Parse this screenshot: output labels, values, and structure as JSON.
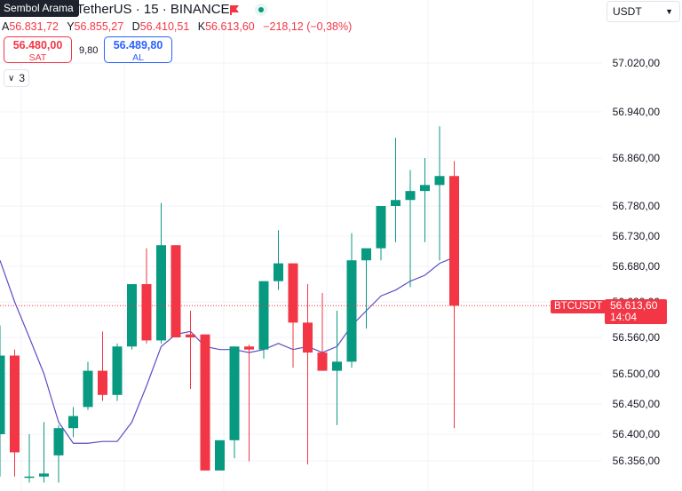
{
  "header": {
    "search_tooltip": "Sembol Arama",
    "symbol_title": "TetherUS · 15 · BINANCE",
    "flag_icon": "flag-icon",
    "status_color": "#089981"
  },
  "ohlc": {
    "open_key": "A",
    "open_value": "56.831,72",
    "high_key": "Y",
    "high_value": "56.855,27",
    "low_key": "D",
    "low_value": "56.410,51",
    "close_key": "K",
    "close_value": "56.613,60",
    "change": "−218,12 (−0,38%)"
  },
  "trade": {
    "sell_price": "56.480,00",
    "sell_label": "SAT",
    "spread": "9,80",
    "buy_price": "56.489,80",
    "buy_label": "AL"
  },
  "indicators_toggle": {
    "count": "3"
  },
  "currency_select": {
    "value": "USDT"
  },
  "price_line": {
    "symbol_tag": "BTCUSDT",
    "last_price": "56.613,60",
    "countdown": "14:04"
  },
  "colors": {
    "up": "#089981",
    "down": "#f23645",
    "ma": "#5b4fc4",
    "grid": "#f0f3fa"
  },
  "chart_data": {
    "type": "candlestick",
    "y_ticks": [
      {
        "label": "57.020,00",
        "value": 57020
      },
      {
        "label": "56.940,00",
        "value": 56940
      },
      {
        "label": "56.860,00",
        "value": 56860
      },
      {
        "label": "56.780,00",
        "value": 56780
      },
      {
        "label": "56.730,00",
        "value": 56730
      },
      {
        "label": "56.680,00",
        "value": 56680
      },
      {
        "label": "56.620,00",
        "value": 56620
      },
      {
        "label": "56.560,00",
        "value": 56560
      },
      {
        "label": "56.500,00",
        "value": 56500
      },
      {
        "label": "56.450,00",
        "value": 56450
      },
      {
        "label": "56.400,00",
        "value": 56400
      },
      {
        "label": "56.356,00",
        "value": 56356
      }
    ],
    "last_price": 56613.6,
    "candles": [
      {
        "o": 56400,
        "h": 56580,
        "l": 56330,
        "c": 56530
      },
      {
        "o": 56530,
        "h": 56540,
        "l": 56330,
        "c": 56370
      },
      {
        "o": 56330,
        "h": 56400,
        "l": 56320,
        "c": 56330
      },
      {
        "o": 56330,
        "h": 56420,
        "l": 56320,
        "c": 56335
      },
      {
        "o": 56365,
        "h": 56415,
        "l": 56320,
        "c": 56410
      },
      {
        "o": 56410,
        "h": 56445,
        "l": 56395,
        "c": 56430
      },
      {
        "o": 56445,
        "h": 56520,
        "l": 56440,
        "c": 56505
      },
      {
        "o": 56505,
        "h": 56570,
        "l": 56455,
        "c": 56465
      },
      {
        "o": 56465,
        "h": 56550,
        "l": 56455,
        "c": 56545
      },
      {
        "o": 56545,
        "h": 56650,
        "l": 56540,
        "c": 56650
      },
      {
        "o": 56650,
        "h": 56710,
        "l": 56550,
        "c": 56555
      },
      {
        "o": 56555,
        "h": 56785,
        "l": 56550,
        "c": 56715
      },
      {
        "o": 56715,
        "h": 56715,
        "l": 56560,
        "c": 56560
      },
      {
        "o": 56565,
        "h": 56605,
        "l": 56475,
        "c": 56560
      },
      {
        "o": 56565,
        "h": 56565,
        "l": 56340,
        "c": 56340
      },
      {
        "o": 56340,
        "h": 56390,
        "l": 56340,
        "c": 56390
      },
      {
        "o": 56390,
        "h": 56545,
        "l": 56360,
        "c": 56545
      },
      {
        "o": 56545,
        "h": 56548,
        "l": 56355,
        "c": 56540
      },
      {
        "o": 56540,
        "h": 56655,
        "l": 56525,
        "c": 56655
      },
      {
        "o": 56655,
        "h": 56740,
        "l": 56640,
        "c": 56685
      },
      {
        "o": 56685,
        "h": 56685,
        "l": 56510,
        "c": 56585
      },
      {
        "o": 56585,
        "h": 56650,
        "l": 56350,
        "c": 56535
      },
      {
        "o": 56535,
        "h": 56635,
        "l": 56505,
        "c": 56505
      },
      {
        "o": 56505,
        "h": 56605,
        "l": 56415,
        "c": 56520
      },
      {
        "o": 56520,
        "h": 56735,
        "l": 56510,
        "c": 56690
      },
      {
        "o": 56690,
        "h": 56705,
        "l": 56575,
        "c": 56710
      },
      {
        "o": 56710,
        "h": 56780,
        "l": 56690,
        "c": 56780
      },
      {
        "o": 56780,
        "h": 56895,
        "l": 56720,
        "c": 56790
      },
      {
        "o": 56790,
        "h": 56840,
        "l": 56645,
        "c": 56805
      },
      {
        "o": 56805,
        "h": 56860,
        "l": 56720,
        "c": 56815
      },
      {
        "o": 56815,
        "h": 56915,
        "l": 56690,
        "c": 56830
      },
      {
        "o": 56830,
        "h": 56855,
        "l": 56410,
        "c": 56613.6
      }
    ],
    "ma": [
      56690,
      56620,
      56560,
      56500,
      56420,
      56385,
      56385,
      56388,
      56388,
      56420,
      56480,
      56545,
      56565,
      56570,
      56545,
      56540,
      56540,
      56535,
      56540,
      56550,
      56540,
      56545,
      56535,
      56545,
      56580,
      56605,
      56630,
      56640,
      56655,
      56665,
      56685,
      56695
    ]
  }
}
